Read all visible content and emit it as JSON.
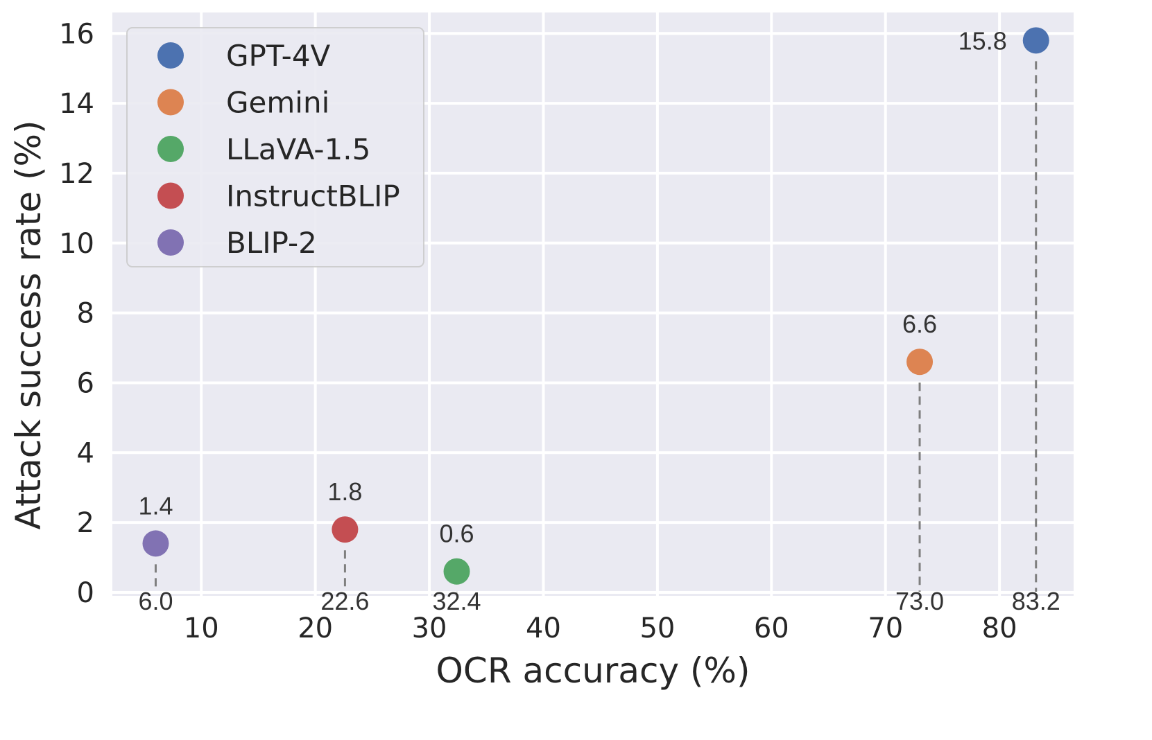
{
  "chart_data": {
    "type": "scatter",
    "title": "",
    "xlabel": "OCR accuracy (%)",
    "ylabel": "Attack success rate (%)",
    "xlim": [
      2.2,
      86.5
    ],
    "ylim": [
      -0.1,
      16.6
    ],
    "xticks": [
      10,
      20,
      30,
      40,
      50,
      60,
      70,
      80
    ],
    "yticks": [
      0,
      2,
      4,
      6,
      8,
      10,
      12,
      14,
      16
    ],
    "grid": true,
    "legend_position": "upper-left",
    "background_color": "#eaeaf2",
    "grid_color": "#ffffff",
    "drop_line_color": "#7f7f7f",
    "series": [
      {
        "name": "GPT-4V",
        "color": "#4c72b0",
        "x": 83.2,
        "y": 15.8,
        "x_label": "83.2",
        "y_label": "15.8",
        "label_side": "left"
      },
      {
        "name": "Gemini",
        "color": "#dd8452",
        "x": 73.0,
        "y": 6.6,
        "x_label": "73.0",
        "y_label": "6.6",
        "label_side": "top"
      },
      {
        "name": "LLaVA-1.5",
        "color": "#55a868",
        "x": 32.4,
        "y": 0.6,
        "x_label": "32.4",
        "y_label": "0.6",
        "label_side": "top"
      },
      {
        "name": "InstructBLIP",
        "color": "#c44e52",
        "x": 22.6,
        "y": 1.8,
        "x_label": "22.6",
        "y_label": "1.8",
        "label_side": "top"
      },
      {
        "name": "BLIP-2",
        "color": "#8172b3",
        "x": 6.0,
        "y": 1.4,
        "x_label": "6.0",
        "y_label": "1.4",
        "label_side": "top"
      }
    ]
  }
}
